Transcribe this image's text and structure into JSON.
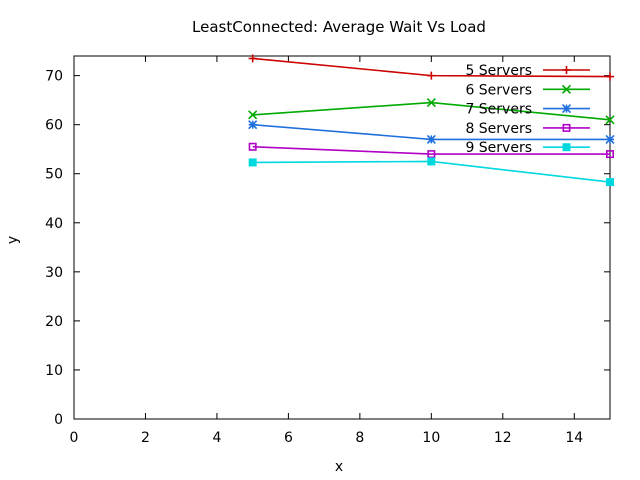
{
  "chart_data": {
    "type": "line",
    "title": "LeastConnected: Average Wait Vs Load",
    "xlabel": "x",
    "ylabel": "y",
    "xlim": [
      0,
      15
    ],
    "ylim": [
      0,
      74
    ],
    "xticks": [
      0,
      2,
      4,
      6,
      8,
      10,
      12,
      14
    ],
    "yticks": [
      0,
      10,
      20,
      30,
      40,
      50,
      60,
      70
    ],
    "grid": false,
    "legend_position": "top-right",
    "x": [
      5,
      10,
      15
    ],
    "series": [
      {
        "name": "5 Servers",
        "values": [
          73.5,
          70.0,
          69.8
        ],
        "color": "#cc0000",
        "marker": "plus"
      },
      {
        "name": "6 Servers",
        "values": [
          62.0,
          64.5,
          61.0
        ],
        "color": "#00aa00",
        "marker": "cross"
      },
      {
        "name": "7 Servers",
        "values": [
          60.0,
          57.0,
          57.0
        ],
        "color": "#1f6fdc",
        "marker": "star"
      },
      {
        "name": "8 Servers",
        "values": [
          55.5,
          54.0,
          54.0
        ],
        "color": "#b000c8",
        "marker": "open-square"
      },
      {
        "name": "9 Servers",
        "values": [
          52.3,
          52.5,
          48.3
        ],
        "color": "#00d8e0",
        "marker": "filled-square"
      }
    ]
  }
}
